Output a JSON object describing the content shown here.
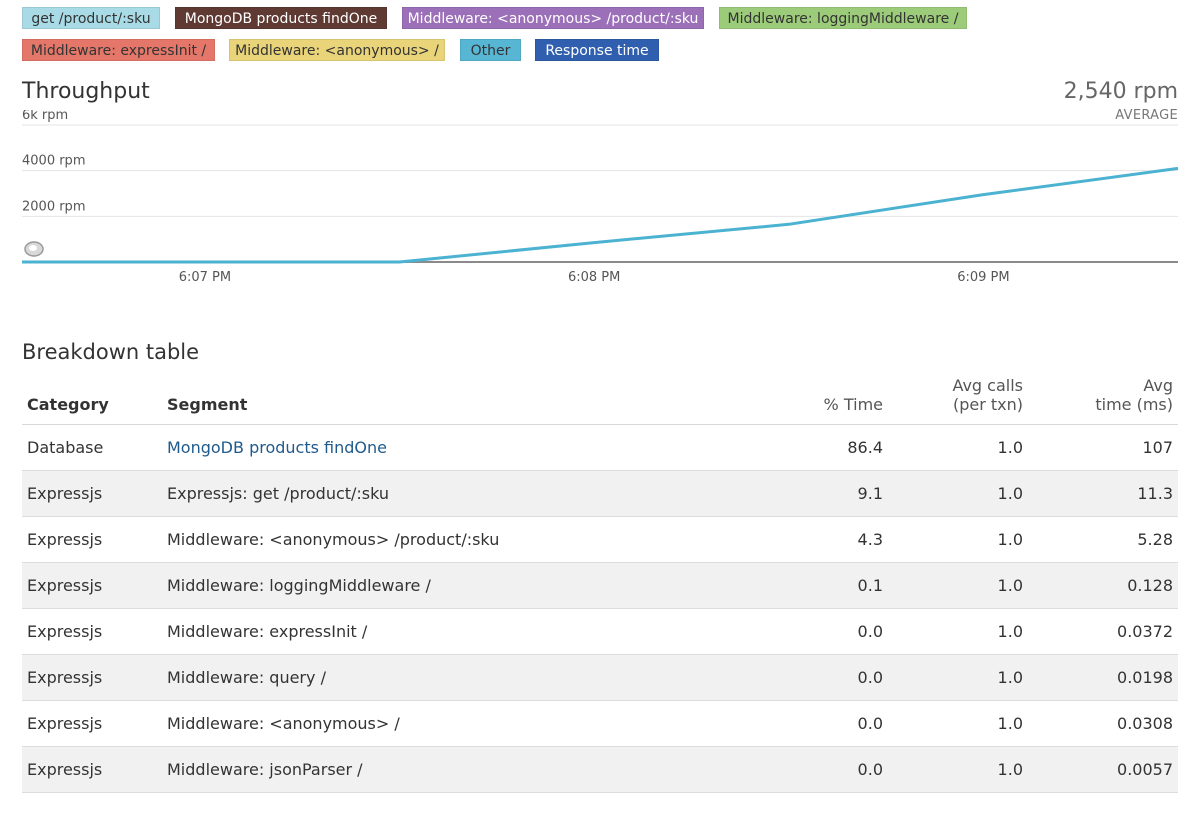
{
  "legend": {
    "items": [
      {
        "label": "get /product/:sku",
        "color": "#a8dbe6",
        "text_color": "#333333",
        "name": "legend-get-product-sku"
      },
      {
        "label": "MongoDB products findOne",
        "color": "#5e3a33",
        "text_color": "#ffffff",
        "name": "legend-mongodb-findone"
      },
      {
        "label": "Middleware: <anonymous> /product/:sku",
        "color": "#9c6fb9",
        "text_color": "#ffffff",
        "name": "legend-middleware-anonymous-product"
      },
      {
        "label": "Middleware: loggingMiddleware /",
        "color": "#9ccc7a",
        "text_color": "#333333",
        "name": "legend-middleware-logging"
      },
      {
        "label": "Middleware: expressInit /",
        "color": "#e5776a",
        "text_color": "#333333",
        "name": "legend-middleware-expressinit"
      },
      {
        "label": "Middleware: <anonymous> /",
        "color": "#ead47a",
        "text_color": "#333333",
        "name": "legend-middleware-anonymous"
      },
      {
        "label": "Other",
        "color": "#56b6d3",
        "text_color": "#333333",
        "name": "legend-other"
      },
      {
        "label": "Response time",
        "color": "#2f5fae",
        "text_color": "#ffffff",
        "name": "legend-response-time"
      }
    ]
  },
  "throughput": {
    "title": "Throughput",
    "average_value": "2,540 rpm",
    "average_label": "AVERAGE"
  },
  "chart_data": {
    "type": "line",
    "title": "Throughput",
    "y_unit": "rpm",
    "y_ticks": [
      "6k rpm",
      "4000 rpm",
      "2000 rpm"
    ],
    "y_tick_values": [
      6000,
      4000,
      2000
    ],
    "ylim": [
      0,
      6000
    ],
    "x_ticks": [
      "6:07 PM",
      "6:08 PM",
      "6:09 PM"
    ],
    "x_tick_minutes": [
      7,
      8,
      9
    ],
    "xlim": [
      6.53,
      9.5
    ],
    "grid": true,
    "series": [
      {
        "color": "#4bb3d1",
        "x": [
          6.53,
          7.0,
          7.5,
          8.0,
          8.5,
          9.0,
          9.5
        ],
        "y": [
          0,
          0,
          0,
          850,
          1650,
          2950,
          4100
        ]
      }
    ]
  },
  "breakdown": {
    "title": "Breakdown table",
    "columns": {
      "category": "Category",
      "segment": "Segment",
      "pct_time": "% Time",
      "avg_calls_line1": "Avg calls",
      "avg_calls_line2": "(per txn)",
      "avg_time_line1": "Avg",
      "avg_time_line2": "time (ms)"
    },
    "rows": [
      {
        "category": "Database",
        "segment": "MongoDB products findOne",
        "pct": "86.4",
        "calls": "1.0",
        "time": "107",
        "link": true
      },
      {
        "category": "Expressjs",
        "segment": "Expressjs: get /product/:sku",
        "pct": "9.1",
        "calls": "1.0",
        "time": "11.3"
      },
      {
        "category": "Expressjs",
        "segment": "Middleware: <anonymous> /product/:sku",
        "pct": "4.3",
        "calls": "1.0",
        "time": "5.28"
      },
      {
        "category": "Expressjs",
        "segment": "Middleware: loggingMiddleware /",
        "pct": "0.1",
        "calls": "1.0",
        "time": "0.128"
      },
      {
        "category": "Expressjs",
        "segment": "Middleware: expressInit /",
        "pct": "0.0",
        "calls": "1.0",
        "time": "0.0372"
      },
      {
        "category": "Expressjs",
        "segment": "Middleware: query /",
        "pct": "0.0",
        "calls": "1.0",
        "time": "0.0198"
      },
      {
        "category": "Expressjs",
        "segment": "Middleware: <anonymous> /",
        "pct": "0.0",
        "calls": "1.0",
        "time": "0.0308"
      },
      {
        "category": "Expressjs",
        "segment": "Middleware: jsonParser /",
        "pct": "0.0",
        "calls": "1.0",
        "time": "0.0057"
      }
    ]
  }
}
